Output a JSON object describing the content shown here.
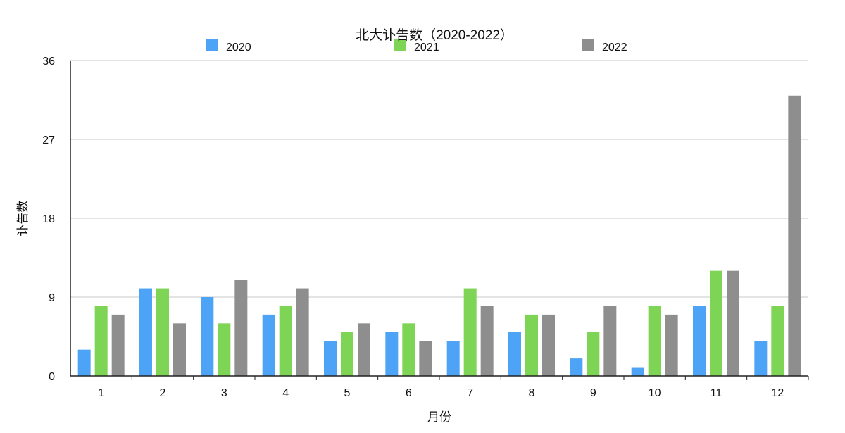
{
  "chart_data": {
    "type": "bar",
    "title": "北大讣告数（2020-2022）",
    "xlabel": "月份",
    "ylabel": "讣告数",
    "categories": [
      "1",
      "2",
      "3",
      "4",
      "5",
      "6",
      "7",
      "8",
      "9",
      "10",
      "11",
      "12"
    ],
    "series": [
      {
        "name": "2020",
        "color": "#4DA3F5",
        "values": [
          3,
          10,
          9,
          7,
          4,
          5,
          4,
          5,
          2,
          1,
          8,
          4
        ]
      },
      {
        "name": "2021",
        "color": "#7ED454",
        "values": [
          8,
          10,
          6,
          8,
          5,
          6,
          10,
          7,
          5,
          8,
          12,
          8
        ]
      },
      {
        "name": "2022",
        "color": "#8E8E8E",
        "values": [
          7,
          6,
          11,
          10,
          6,
          4,
          8,
          7,
          8,
          7,
          12,
          32
        ]
      }
    ],
    "ylim": [
      0,
      36
    ],
    "yticks": [
      0,
      9,
      18,
      27,
      36
    ],
    "grid": true,
    "legend_position": "top"
  }
}
